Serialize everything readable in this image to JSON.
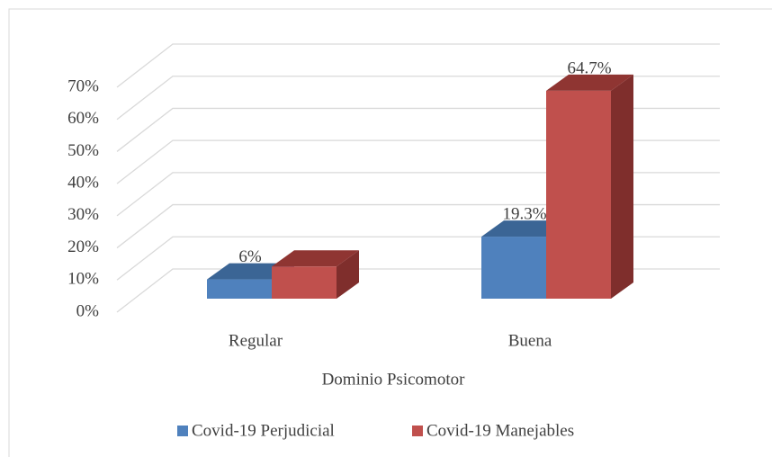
{
  "chart_data": {
    "type": "bar3d",
    "categories": [
      "Regular",
      "Buena"
    ],
    "x_label": "Dominio Psicomotor",
    "series": [
      {
        "name": "Covid-19 Perjudicial",
        "color": "#4f81bd",
        "top_color": "#3b6595",
        "side_color": "#37598a",
        "values": [
          6,
          19.3
        ],
        "value_labels": [
          "6%",
          "19.3%"
        ]
      },
      {
        "name": "Covid-19 Manejables",
        "color": "#c0504d",
        "top_color": "#8f3532",
        "side_color": "#7f2e2c",
        "values": [
          10,
          64.7
        ],
        "value_labels": [
          null,
          "64.7%"
        ]
      }
    ],
    "ylim": [
      0,
      70
    ],
    "yticks": [
      {
        "value": 0,
        "label": "0%"
      },
      {
        "value": 10,
        "label": "10%"
      },
      {
        "value": 20,
        "label": "20%"
      },
      {
        "value": 30,
        "label": "30%"
      },
      {
        "value": 40,
        "label": "40%"
      },
      {
        "value": 50,
        "label": "50%"
      },
      {
        "value": 60,
        "label": "60%"
      },
      {
        "value": 70,
        "label": "70%"
      }
    ],
    "grid": true,
    "legend": "bottom"
  }
}
